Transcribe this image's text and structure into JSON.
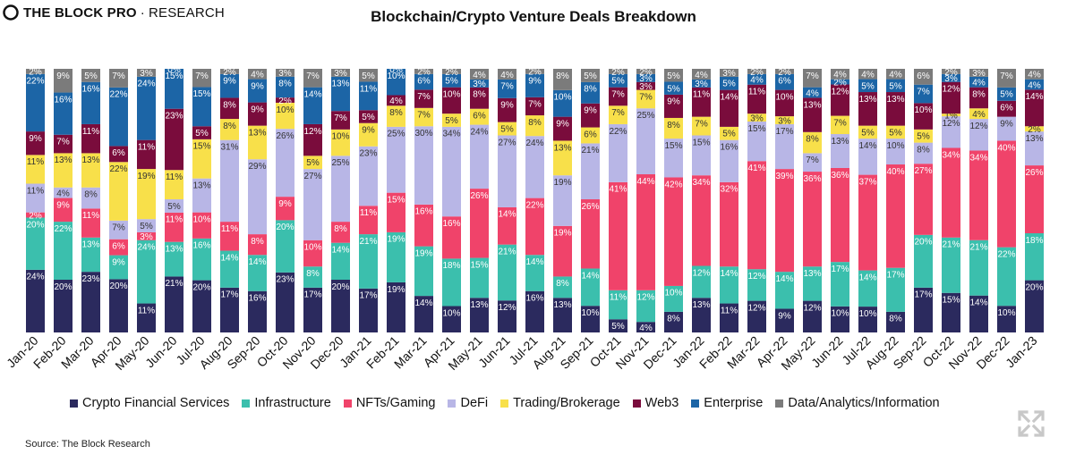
{
  "brand": {
    "name": "THE BLOCK PRO",
    "separator": "·",
    "sub": "RESEARCH"
  },
  "source": "Source: The Block Research",
  "chart_data": {
    "type": "bar",
    "stacked": true,
    "percent_stacked": true,
    "title": "Blockchain/Crypto Venture Deals Breakdown",
    "legend_position": "bottom",
    "categories": [
      "Jan-20",
      "Feb-20",
      "Mar-20",
      "Apr-20",
      "May-20",
      "Jun-20",
      "Jul-20",
      "Aug-20",
      "Sep-20",
      "Oct-20",
      "Nov-20",
      "Dec-20",
      "Jan-21",
      "Feb-21",
      "Mar-21",
      "Apr-21",
      "May-21",
      "Jun-21",
      "Jul-21",
      "Aug-21",
      "Sep-21",
      "Oct-21",
      "Nov-21",
      "Dec-21",
      "Jan-22",
      "Feb-22",
      "Mar-22",
      "Apr-22",
      "May-22",
      "Jun-22",
      "Jul-22",
      "Aug-22",
      "Sep-22",
      "Oct-22",
      "Nov-22",
      "Dec-22",
      "Jan-23"
    ],
    "series": [
      {
        "name": "Crypto Financial Services",
        "color": "#2b2a5e",
        "values": [
          24,
          20,
          23,
          20,
          11,
          21,
          20,
          17,
          16,
          23,
          17,
          20,
          17,
          19,
          14,
          10,
          13,
          12,
          16,
          13,
          10,
          5,
          4,
          8,
          13,
          11,
          12,
          9,
          12,
          10,
          10,
          8,
          17,
          15,
          14,
          10,
          20
        ]
      },
      {
        "name": "Infrastructure",
        "color": "#3bbfad",
        "values": [
          20,
          22,
          13,
          9,
          24,
          13,
          16,
          14,
          14,
          20,
          8,
          14,
          21,
          19,
          19,
          18,
          15,
          21,
          14,
          8,
          14,
          11,
          12,
          10,
          12,
          14,
          12,
          14,
          13,
          17,
          14,
          17,
          20,
          21,
          21,
          22,
          18
        ]
      },
      {
        "name": "NFTs/Gaming",
        "color": "#f0436a",
        "values": [
          2,
          9,
          11,
          6,
          3,
          11,
          10,
          11,
          8,
          9,
          10,
          8,
          11,
          15,
          16,
          16,
          26,
          14,
          22,
          19,
          26,
          41,
          44,
          42,
          34,
          32,
          41,
          39,
          36,
          36,
          37,
          40,
          27,
          34,
          34,
          40,
          26
        ]
      },
      {
        "name": "DeFi",
        "color": "#b8b6e6",
        "values": [
          11,
          4,
          8,
          7,
          5,
          5,
          13,
          31,
          29,
          26,
          27,
          25,
          23,
          25,
          30,
          34,
          24,
          27,
          24,
          19,
          21,
          22,
          25,
          15,
          15,
          16,
          15,
          17,
          7,
          13,
          14,
          10,
          8,
          12,
          12,
          9,
          13
        ]
      },
      {
        "name": "Trading/Brokerage",
        "color": "#f8e04a",
        "values": [
          11,
          13,
          13,
          22,
          19,
          11,
          15,
          8,
          13,
          10,
          5,
          10,
          9,
          8,
          7,
          5,
          6,
          5,
          8,
          13,
          6,
          7,
          7,
          8,
          7,
          5,
          3,
          3,
          8,
          7,
          5,
          5,
          5,
          1,
          4,
          0,
          2
        ]
      },
      {
        "name": "Web3",
        "color": "#7a0c3c",
        "values": [
          9,
          7,
          11,
          6,
          11,
          23,
          5,
          8,
          9,
          2,
          12,
          7,
          5,
          4,
          7,
          10,
          8,
          9,
          7,
          9,
          9,
          7,
          3,
          9,
          11,
          14,
          11,
          10,
          13,
          12,
          13,
          13,
          10,
          12,
          8,
          6,
          14
        ]
      },
      {
        "name": "Enterprise",
        "color": "#1c65a6",
        "values": [
          22,
          16,
          16,
          22,
          24,
          15,
          15,
          9,
          9,
          8,
          14,
          13,
          11,
          10,
          6,
          5,
          3,
          7,
          9,
          10,
          8,
          5,
          3,
          5,
          3,
          5,
          4,
          6,
          4,
          2,
          5,
          5,
          7,
          3,
          4,
          5,
          4
        ]
      },
      {
        "name": "Data/Analytics/Information",
        "color": "#7b7b7b",
        "values": [
          2,
          9,
          5,
          7,
          3,
          0,
          7,
          2,
          4,
          3,
          7,
          3,
          5,
          0,
          2,
          2,
          4,
          4,
          2,
          8,
          5,
          2,
          2,
          5,
          4,
          3,
          2,
          2,
          7,
          4,
          4,
          4,
          6,
          2,
          3,
          7,
          4
        ]
      }
    ]
  }
}
